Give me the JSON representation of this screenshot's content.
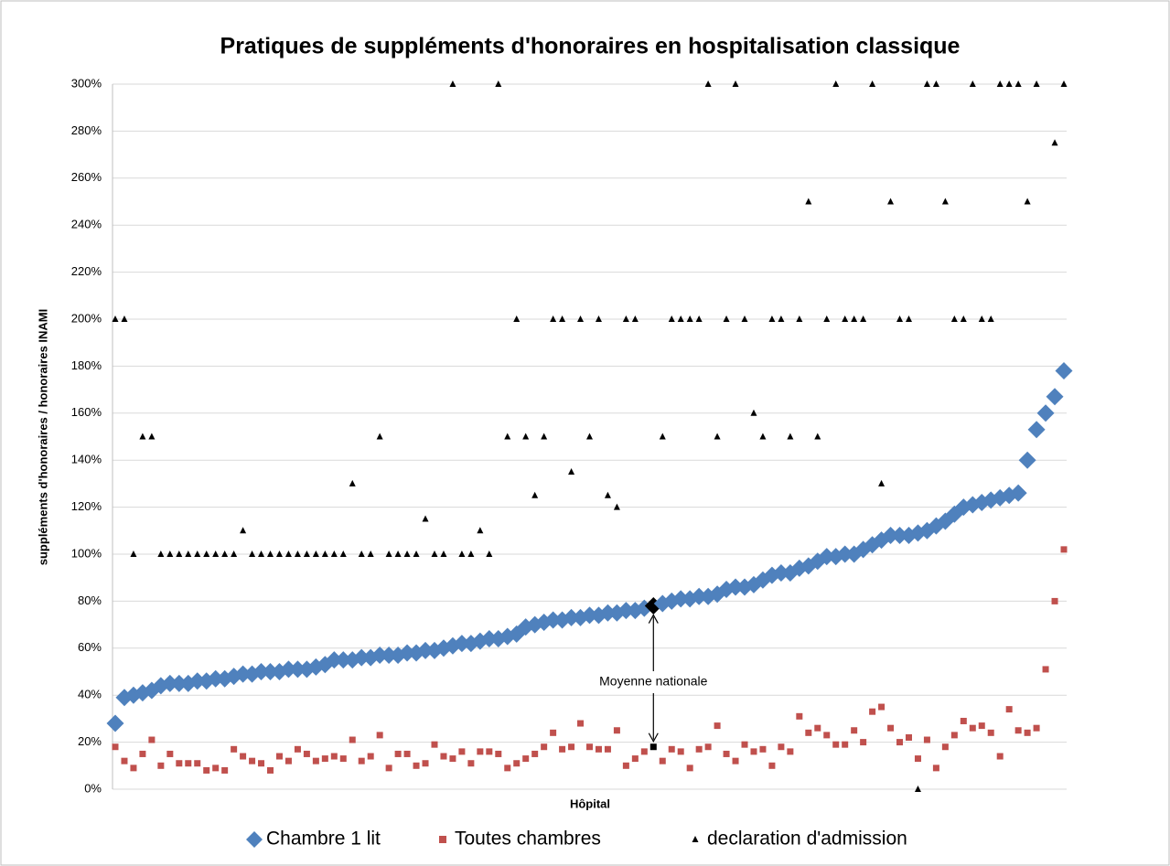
{
  "chart_data": {
    "type": "scatter",
    "title": "Pratiques de suppléments d'honoraires en hospitalisation classique",
    "ylabel": "suppléments d'honoraires / honoraires INAMI",
    "xlabel": "Hôpital",
    "categories": [
      null,
      null,
      null,
      null,
      null,
      null,
      null,
      null,
      null,
      null,
      null,
      null,
      null,
      null,
      null,
      null,
      null,
      null,
      null,
      null,
      null,
      null,
      null,
      null,
      null,
      null,
      null,
      null,
      null,
      null,
      null,
      null,
      null,
      null,
      null,
      null,
      null,
      null,
      null,
      null,
      null,
      null,
      null,
      null,
      null,
      null,
      null,
      null,
      null,
      null,
      null,
      null,
      null,
      null,
      null,
      null,
      null,
      null,
      null,
      null,
      null,
      null,
      null,
      null,
      null,
      null,
      null,
      null,
      null,
      null,
      null,
      null,
      null,
      null,
      null,
      null,
      null,
      null,
      null,
      null,
      null,
      null,
      null,
      null,
      null,
      null,
      null,
      null,
      null,
      null,
      null,
      null,
      null,
      null,
      null,
      null,
      null,
      null,
      null,
      null,
      null,
      null,
      null,
      null,
      null
    ],
    "series": [
      {
        "name": "Chambre 1 lit",
        "color": "#4f81bd",
        "marker": "diamond",
        "values": [
          28,
          39,
          40,
          41,
          42,
          44,
          45,
          45,
          45,
          46,
          46,
          47,
          47,
          48,
          49,
          49,
          50,
          50,
          50,
          51,
          51,
          51,
          52,
          53,
          55,
          55,
          55,
          56,
          56,
          57,
          57,
          57,
          58,
          58,
          59,
          59,
          60,
          61,
          62,
          62,
          63,
          64,
          64,
          65,
          66,
          69,
          70,
          71,
          72,
          72,
          73,
          73,
          74,
          74,
          75,
          75,
          76,
          76,
          77,
          78,
          79,
          80,
          81,
          81,
          82,
          82,
          83,
          85,
          86,
          86,
          87,
          89,
          91,
          92,
          92,
          94,
          95,
          97,
          99,
          99,
          100,
          100,
          102,
          104,
          106,
          108,
          108,
          108,
          109,
          110,
          112,
          114,
          117,
          120,
          121,
          122,
          123,
          124,
          125,
          126,
          140,
          153,
          160,
          167,
          178
        ]
      },
      {
        "name": "Toutes chambres",
        "color": "#c0504d",
        "marker": "square",
        "values": [
          18,
          12,
          9,
          15,
          21,
          10,
          15,
          11,
          11,
          11,
          8,
          9,
          8,
          17,
          14,
          12,
          11,
          8,
          14,
          12,
          17,
          15,
          12,
          13,
          14,
          13,
          21,
          12,
          14,
          23,
          9,
          15,
          15,
          10,
          11,
          19,
          14,
          13,
          16,
          11,
          16,
          16,
          15,
          9,
          11,
          13,
          15,
          18,
          24,
          17,
          18,
          28,
          18,
          17,
          17,
          25,
          10,
          13,
          16,
          18,
          12,
          17,
          16,
          9,
          17,
          18,
          27,
          15,
          12,
          19,
          16,
          17,
          10,
          18,
          16,
          31,
          24,
          26,
          23,
          19,
          19,
          25,
          20,
          33,
          35,
          26,
          20,
          22,
          13,
          21,
          9,
          18,
          23,
          29,
          26,
          27,
          24,
          14,
          34,
          25,
          24,
          26,
          51,
          80,
          102
        ]
      },
      {
        "name": "declaration d'admission",
        "color": "#000000",
        "marker": "triangle",
        "values": [
          200,
          200,
          100,
          150,
          150,
          100,
          100,
          100,
          100,
          100,
          100,
          100,
          100,
          100,
          110,
          100,
          100,
          100,
          100,
          100,
          100,
          100,
          100,
          100,
          100,
          100,
          130,
          100,
          100,
          150,
          100,
          100,
          100,
          100,
          115,
          100,
          100,
          300,
          100,
          100,
          110,
          100,
          300,
          150,
          200,
          150,
          125,
          150,
          200,
          200,
          135,
          200,
          150,
          200,
          125,
          120,
          200,
          200,
          null,
          null,
          150,
          200,
          200,
          200,
          200,
          300,
          150,
          200,
          300,
          200,
          160,
          150,
          200,
          200,
          150,
          200,
          250,
          150,
          200,
          300,
          200,
          200,
          200,
          300,
          130,
          250,
          200,
          200,
          0,
          300,
          300,
          250,
          200,
          200,
          300,
          200,
          200,
          300,
          300,
          300,
          250,
          300,
          null,
          275,
          300
        ]
      }
    ],
    "annotation": {
      "text": "Moyenne nationale",
      "index": 59,
      "highlight_color": "#000000"
    },
    "ylim": [
      0,
      300
    ],
    "yticks": [
      {
        "value": 0,
        "label": "0%"
      },
      {
        "value": 20,
        "label": "20%"
      },
      {
        "value": 40,
        "label": "40%"
      },
      {
        "value": 60,
        "label": "60%"
      },
      {
        "value": 80,
        "label": "80%"
      },
      {
        "value": 100,
        "label": "100%"
      },
      {
        "value": 120,
        "label": "120%"
      },
      {
        "value": 140,
        "label": "140%"
      },
      {
        "value": 160,
        "label": "160%"
      },
      {
        "value": 180,
        "label": "180%"
      },
      {
        "value": 200,
        "label": "200%"
      },
      {
        "value": 220,
        "label": "220%"
      },
      {
        "value": 240,
        "label": "240%"
      },
      {
        "value": 260,
        "label": "260%"
      },
      {
        "value": 280,
        "label": "280%"
      },
      {
        "value": 300,
        "label": "300%"
      }
    ],
    "grid": true,
    "legend": "bottom"
  }
}
